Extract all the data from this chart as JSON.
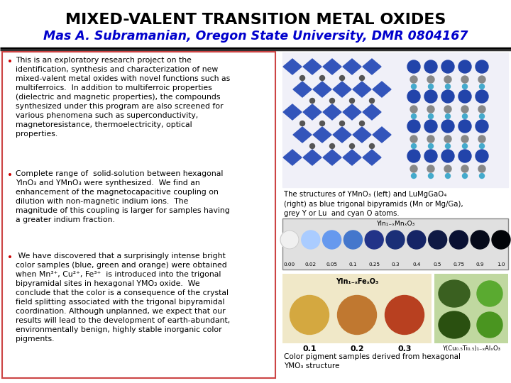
{
  "title_line1": "MIXED-VALENT TRANSITION METAL OXIDES",
  "title_line2": "Mas A. Subramanian, Oregon State University, DMR 0804167",
  "title_color1": "#000000",
  "title_color2": "#0000cc",
  "title_fontsize1": 16,
  "title_fontsize2": 12.5,
  "bg_color": "#ffffff",
  "bullet_color": "#cc0000",
  "bullet_fontsize": 7.8,
  "bullet1": "This is an exploratory research project on the\nidentification, synthesis and characterization of new\nmixed-valent metal oxides with novel functions such as\nmultiferroics.  In addition to multiferroic properties\n(dielectric and magnetic properties), the compounds\nsynthesized under this program are also screened for\nvarious phenomena such as superconductivity,\nmagnetoresistance, thermoelectricity, optical\nproperties.",
  "bullet2": "Complete range of  solid-solution between hexagonal\nYInO₃ and YMnO₃ were synthesized.  We find an\nenhancement of the magnetocapacitive coupling on\ndilution with non-magnetic indium ions.  The\nmagnitude of this coupling is larger for samples having\na greater indium fraction.",
  "bullet3": " We have discovered that a surprisingly intense bright\ncolor samples (blue, green and orange) were obtained\nwhen Mn³⁺, Cu²⁺, Fe³⁺  is introduced into the trigonal\nbipyramidal sites in hexagonal YMO₃ oxide.  We\nconclude that the color is a consequence of the crystal\nfield splitting associated with the trigonal bipyramidal\ncoordination. Although unplanned, we expect that our\nresults will lead to the development of earth-abundant,\nenvironmentally benign, highly stable inorganic color\npigments.",
  "caption1": "The structures of YMnO₃ (left) and LuMgGaO₄\n(right) as blue trigonal bipyramids (Mn or Mg/Ga),\ngrey Y or Lu  and cyan O atoms.",
  "caption2_label": "YIn₁₋ₓMnₓO₃",
  "caption2_ticks": [
    "0.00",
    "0.02",
    "0.05",
    "0.1",
    "0.25",
    "0.3",
    "0.4",
    "0.5",
    "0.75",
    "0.9",
    "1.0"
  ],
  "strip_colors": [
    "#f0f0f0",
    "#aaccff",
    "#6699ee",
    "#4477cc",
    "#223388",
    "#1a2f77",
    "#152466",
    "#101a44",
    "#0a1133",
    "#060a1a",
    "#020408"
  ],
  "caption3_label": "YIn₁₋ₓFeₓO₃",
  "caption3_ticks": [
    "0.1",
    "0.2",
    "0.3"
  ],
  "caption4_label": "Y(Cu₀.₅Ti₀.₅)₁₋ₓAlₓO₃",
  "caption_bottom": "Color pigment samples derived from hexagonal\nYMO₃ structure",
  "text_box_border_color": "#cc4444",
  "panel_bg": "#f0f0f8",
  "strip_bg": "#e0e0e0",
  "powder_bg": "#f0e8c8",
  "green_bg": "#c0d8a0"
}
